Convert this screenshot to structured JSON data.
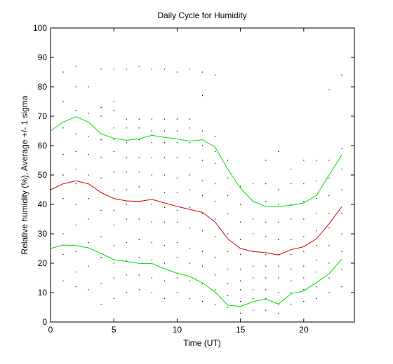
{
  "chart_data": {
    "type": "line",
    "title": "Daily Cycle for Humidity",
    "xlabel": "Time (UT)",
    "ylabel": "Relative humidity (%), Average +/- 1 sigma",
    "xlim": [
      0,
      24
    ],
    "ylim": [
      0,
      100
    ],
    "xticks": [
      0,
      5,
      10,
      15,
      20
    ],
    "yticks": [
      0,
      10,
      20,
      30,
      40,
      50,
      60,
      70,
      80,
      90,
      100
    ],
    "grid": false,
    "x": [
      0,
      1,
      2,
      3,
      4,
      5,
      6,
      7,
      8,
      9,
      10,
      11,
      12,
      13,
      14,
      15,
      16,
      17,
      18,
      19,
      20,
      21,
      22,
      23
    ],
    "series": [
      {
        "color": "#00dd00",
        "values": [
          65,
          68,
          69.8,
          68,
          64,
          62.5,
          61.8,
          62.3,
          63.5,
          62.8,
          62.3,
          61.5,
          62,
          59.5,
          52,
          45.5,
          41,
          39.3,
          39.3,
          39.7,
          40.5,
          43,
          50,
          56.8
        ]
      },
      {
        "color": "#dd0000",
        "values": [
          45,
          47,
          48,
          47,
          44,
          42,
          41.2,
          41,
          41.7,
          40.5,
          39.3,
          38.3,
          37.3,
          34,
          28.3,
          25,
          24,
          23.6,
          22.8,
          24.6,
          25.6,
          28.3,
          33.4,
          39.2
        ]
      },
      {
        "color": "#00dd00",
        "values": [
          25,
          26.2,
          26,
          25.2,
          23.3,
          21.2,
          20.6,
          19.9,
          19.9,
          18.1,
          16.6,
          15.5,
          13.3,
          10.2,
          5.7,
          5.3,
          6.9,
          7.8,
          6.1,
          9.6,
          10.6,
          13.4,
          16.4,
          21.4
        ]
      }
    ],
    "scatter_points": [
      [
        0,
        13
      ],
      [
        0,
        22
      ],
      [
        0,
        34
      ],
      [
        0,
        41
      ],
      [
        0,
        55
      ],
      [
        0,
        63
      ],
      [
        0,
        77
      ],
      [
        0,
        86
      ],
      [
        1,
        14
      ],
      [
        1,
        23
      ],
      [
        1,
        30
      ],
      [
        1,
        42
      ],
      [
        1,
        50
      ],
      [
        1,
        57
      ],
      [
        1,
        66
      ],
      [
        1,
        75
      ],
      [
        1,
        85
      ],
      [
        2,
        12
      ],
      [
        2,
        17
      ],
      [
        2,
        24
      ],
      [
        2,
        33
      ],
      [
        2,
        40
      ],
      [
        2,
        47
      ],
      [
        2,
        52
      ],
      [
        2,
        58
      ],
      [
        2,
        64
      ],
      [
        2,
        72
      ],
      [
        2,
        80
      ],
      [
        2,
        87
      ],
      [
        3,
        11
      ],
      [
        3,
        19
      ],
      [
        3,
        27
      ],
      [
        3,
        35
      ],
      [
        3,
        42
      ],
      [
        3,
        50
      ],
      [
        3,
        57
      ],
      [
        3,
        63
      ],
      [
        3,
        71
      ],
      [
        3,
        80
      ],
      [
        4,
        6
      ],
      [
        4,
        13
      ],
      [
        4,
        22
      ],
      [
        4,
        29
      ],
      [
        4,
        38
      ],
      [
        4,
        44
      ],
      [
        4,
        49
      ],
      [
        4,
        56
      ],
      [
        4,
        62
      ],
      [
        4,
        70
      ],
      [
        4,
        73
      ],
      [
        4,
        86
      ],
      [
        5,
        8
      ],
      [
        5,
        15
      ],
      [
        5,
        20
      ],
      [
        5,
        26
      ],
      [
        5,
        33
      ],
      [
        5,
        38
      ],
      [
        5,
        45
      ],
      [
        5,
        51
      ],
      [
        5,
        58
      ],
      [
        5,
        62
      ],
      [
        5,
        66
      ],
      [
        5,
        72
      ],
      [
        5,
        75
      ],
      [
        5,
        86
      ],
      [
        6,
        10
      ],
      [
        6,
        16
      ],
      [
        6,
        21
      ],
      [
        6,
        27
      ],
      [
        6,
        35
      ],
      [
        6,
        40
      ],
      [
        6,
        45
      ],
      [
        6,
        51
      ],
      [
        6,
        56
      ],
      [
        6,
        61
      ],
      [
        6,
        66
      ],
      [
        6,
        69
      ],
      [
        6,
        86
      ],
      [
        7,
        11
      ],
      [
        7,
        16
      ],
      [
        7,
        22
      ],
      [
        7,
        28
      ],
      [
        7,
        35
      ],
      [
        7,
        41
      ],
      [
        7,
        46
      ],
      [
        7,
        51
      ],
      [
        7,
        56
      ],
      [
        7,
        62
      ],
      [
        7,
        66
      ],
      [
        7,
        69
      ],
      [
        7,
        87
      ],
      [
        8,
        10
      ],
      [
        8,
        15
      ],
      [
        8,
        21
      ],
      [
        8,
        27
      ],
      [
        8,
        34
      ],
      [
        8,
        40
      ],
      [
        8,
        45
      ],
      [
        8,
        50
      ],
      [
        8,
        56
      ],
      [
        8,
        61
      ],
      [
        8,
        65
      ],
      [
        8,
        69
      ],
      [
        8,
        86
      ],
      [
        9,
        8
      ],
      [
        9,
        14
      ],
      [
        9,
        20
      ],
      [
        9,
        26
      ],
      [
        9,
        34
      ],
      [
        9,
        39
      ],
      [
        9,
        44
      ],
      [
        9,
        50
      ],
      [
        9,
        56
      ],
      [
        9,
        61
      ],
      [
        9,
        65
      ],
      [
        9,
        69
      ],
      [
        9,
        86
      ],
      [
        10,
        10
      ],
      [
        10,
        15
      ],
      [
        10,
        22
      ],
      [
        10,
        27
      ],
      [
        10,
        34
      ],
      [
        10,
        38
      ],
      [
        10,
        44
      ],
      [
        10,
        49
      ],
      [
        10,
        56
      ],
      [
        10,
        61
      ],
      [
        10,
        65
      ],
      [
        10,
        69
      ],
      [
        10,
        85
      ],
      [
        11,
        8
      ],
      [
        11,
        14
      ],
      [
        11,
        20
      ],
      [
        11,
        25
      ],
      [
        11,
        32
      ],
      [
        11,
        39
      ],
      [
        11,
        45
      ],
      [
        11,
        50
      ],
      [
        11,
        56
      ],
      [
        11,
        61
      ],
      [
        11,
        66
      ],
      [
        11,
        69
      ],
      [
        11,
        86
      ],
      [
        12,
        7
      ],
      [
        12,
        13
      ],
      [
        12,
        19
      ],
      [
        12,
        24
      ],
      [
        12,
        31
      ],
      [
        12,
        37
      ],
      [
        12,
        43
      ],
      [
        12,
        48
      ],
      [
        12,
        55
      ],
      [
        12,
        60
      ],
      [
        12,
        65
      ],
      [
        12,
        77
      ],
      [
        12,
        85
      ],
      [
        13,
        6
      ],
      [
        13,
        11
      ],
      [
        13,
        16
      ],
      [
        13,
        22
      ],
      [
        13,
        29
      ],
      [
        13,
        35
      ],
      [
        13,
        41
      ],
      [
        13,
        47
      ],
      [
        13,
        54
      ],
      [
        13,
        58
      ],
      [
        13,
        63
      ],
      [
        13,
        84
      ],
      [
        14,
        5
      ],
      [
        14,
        9
      ],
      [
        14,
        13
      ],
      [
        14,
        18
      ],
      [
        14,
        24
      ],
      [
        14,
        30
      ],
      [
        14,
        37
      ],
      [
        14,
        43
      ],
      [
        14,
        49
      ],
      [
        14,
        55
      ],
      [
        15,
        3
      ],
      [
        15,
        7
      ],
      [
        15,
        11
      ],
      [
        15,
        14
      ],
      [
        15,
        18
      ],
      [
        15,
        23
      ],
      [
        15,
        28
      ],
      [
        15,
        34
      ],
      [
        15,
        40
      ],
      [
        15,
        46
      ],
      [
        16,
        4
      ],
      [
        16,
        8
      ],
      [
        16,
        11
      ],
      [
        16,
        15
      ],
      [
        16,
        19
      ],
      [
        16,
        24
      ],
      [
        16,
        30
      ],
      [
        16,
        35
      ],
      [
        16,
        41
      ],
      [
        16,
        47
      ],
      [
        17,
        4
      ],
      [
        17,
        8
      ],
      [
        17,
        11
      ],
      [
        17,
        15
      ],
      [
        17,
        19
      ],
      [
        17,
        23
      ],
      [
        17,
        29
      ],
      [
        17,
        34
      ],
      [
        17,
        41
      ],
      [
        17,
        47
      ],
      [
        17,
        55
      ],
      [
        18,
        3
      ],
      [
        18,
        6
      ],
      [
        18,
        10
      ],
      [
        18,
        15
      ],
      [
        18,
        19
      ],
      [
        18,
        23
      ],
      [
        18,
        28
      ],
      [
        18,
        34
      ],
      [
        18,
        40
      ],
      [
        18,
        45
      ],
      [
        18,
        58
      ],
      [
        19,
        6
      ],
      [
        19,
        10
      ],
      [
        19,
        14
      ],
      [
        19,
        18
      ],
      [
        19,
        23
      ],
      [
        19,
        28
      ],
      [
        19,
        35
      ],
      [
        19,
        40
      ],
      [
        19,
        47
      ],
      [
        19,
        52
      ],
      [
        20,
        7
      ],
      [
        20,
        11
      ],
      [
        20,
        15
      ],
      [
        20,
        19
      ],
      [
        20,
        24
      ],
      [
        20,
        29
      ],
      [
        20,
        35
      ],
      [
        20,
        41
      ],
      [
        20,
        47
      ],
      [
        20,
        55
      ],
      [
        21,
        8
      ],
      [
        21,
        12
      ],
      [
        21,
        17
      ],
      [
        21,
        21
      ],
      [
        21,
        26
      ],
      [
        21,
        31
      ],
      [
        21,
        37
      ],
      [
        21,
        42
      ],
      [
        21,
        48
      ],
      [
        21,
        55
      ],
      [
        22,
        10
      ],
      [
        22,
        15
      ],
      [
        22,
        20
      ],
      [
        22,
        26
      ],
      [
        22,
        32
      ],
      [
        22,
        37
      ],
      [
        22,
        43
      ],
      [
        22,
        49
      ],
      [
        22,
        55
      ],
      [
        22,
        79
      ],
      [
        23,
        12
      ],
      [
        23,
        18
      ],
      [
        23,
        24
      ],
      [
        23,
        30
      ],
      [
        23,
        37
      ],
      [
        23,
        45
      ],
      [
        23,
        52
      ],
      [
        23,
        59
      ],
      [
        23,
        84
      ]
    ]
  }
}
